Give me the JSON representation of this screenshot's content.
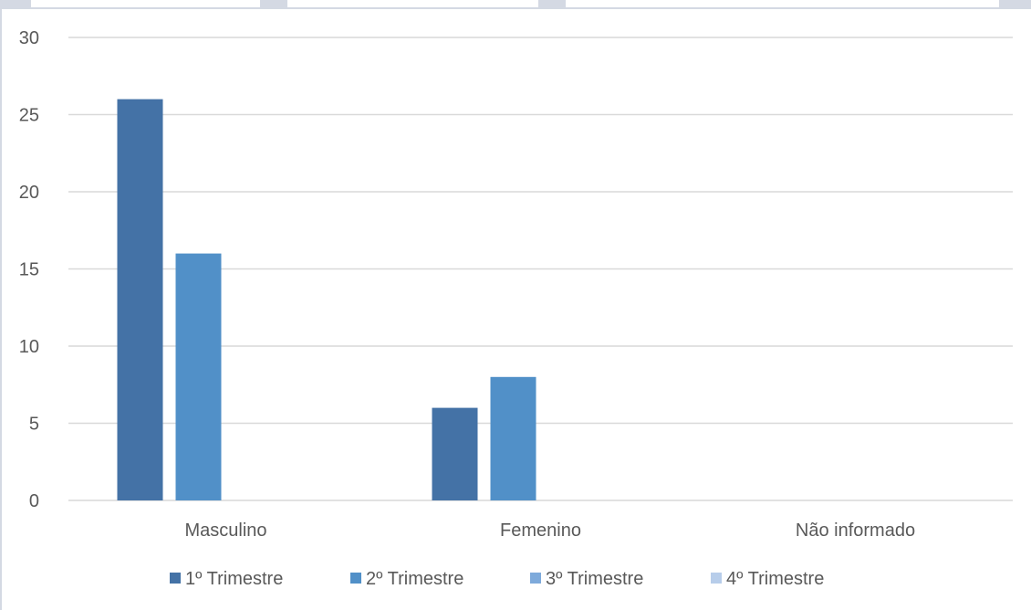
{
  "chart_data": {
    "type": "bar",
    "categories": [
      "Masculino",
      "Femenino",
      "Não informado"
    ],
    "series": [
      {
        "name": "1º Trimestre",
        "values": [
          26,
          6,
          0
        ],
        "color": "#4472a6"
      },
      {
        "name": "2º Trimestre",
        "values": [
          16,
          8,
          0
        ],
        "color": "#5190c8"
      },
      {
        "name": "3º Trimestre",
        "values": [
          0,
          0,
          0
        ],
        "color": "#7eaadb"
      },
      {
        "name": "4º Trimestre",
        "values": [
          0,
          0,
          0
        ],
        "color": "#b7cdea"
      }
    ],
    "y_ticks": [
      "0",
      "5",
      "10",
      "15",
      "20",
      "25",
      "30"
    ],
    "ylim": [
      0,
      30
    ],
    "grid": true,
    "legend_position": "bottom",
    "gridline_color": "#d9d9d9",
    "text_color": "#595959"
  }
}
